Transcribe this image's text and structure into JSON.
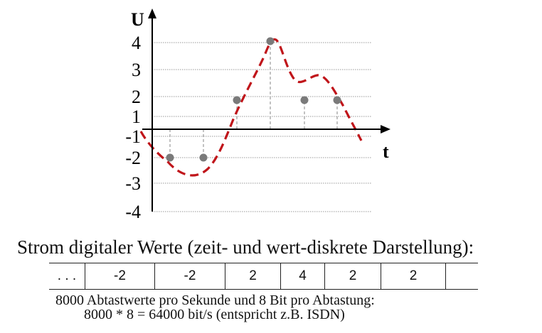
{
  "axis": {
    "y_label": "U",
    "x_label": "t"
  },
  "y_ticks": [
    "4",
    "3",
    "2",
    "1",
    "-1",
    "-2",
    "-3",
    "-4"
  ],
  "samples": [
    -2,
    -2,
    2,
    4,
    2,
    2
  ],
  "caption": "Strom digitaler Werte (zeit- und wert-diskrete Darstellung):",
  "stream": {
    "cells": [
      ". . .",
      "-2",
      "-2",
      "2",
      "4",
      "2",
      "2",
      ""
    ]
  },
  "note": {
    "line1": "8000 Abtastwerte pro Sekunde und 8 Bit pro Abtastung:",
    "line2": "8000 * 8 = 64000 bit/s  (entspricht z.B. ISDN)"
  },
  "colors": {
    "signal": "#c0151a",
    "sample": "#7a7a7a",
    "grid": "#999999",
    "axis": "#000000"
  }
}
